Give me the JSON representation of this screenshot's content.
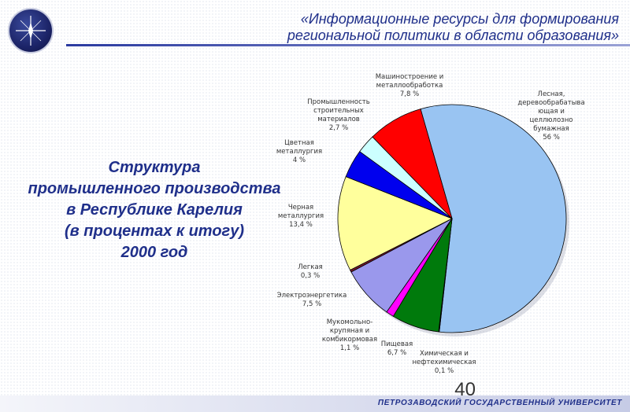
{
  "header": {
    "title_line1": "«Информационные ресурсы для формирования",
    "title_line2": "региональной политики в области образования»"
  },
  "subtitle": {
    "line1": "Структура",
    "line2": "промышленного производства",
    "line3": "в Республике Карелия",
    "line4": "(в процентах к итогу)",
    "line5": "2000 год"
  },
  "page_number": "40",
  "footer": {
    "university": "ПЕТРОЗАВОДСКИЙ ГОСУДАРСТВЕННЫЙ УНИВЕРСИТЕТ"
  },
  "chart_data": {
    "type": "pie",
    "unit": "%",
    "slices": [
      {
        "label": [
          "Лесная,",
          "деревообрабатыва",
          "ющая и",
          "целлюлозно",
          "бумажная"
        ],
        "value_text": "56 %",
        "value": 56,
        "color": "#99c4f2"
      },
      {
        "label": [
          "Химическая и",
          "нефтехимическая"
        ],
        "value_text": "0,1 %",
        "value": 0.1,
        "color": "#8a8a8a"
      },
      {
        "label": [
          "Пищевая"
        ],
        "value_text": "6,7 %",
        "value": 6.7,
        "color": "#007a0c"
      },
      {
        "label": [
          "Мукомольно-",
          "крупяная и",
          "комбикормовая"
        ],
        "value_text": "1,1 %",
        "value": 1.1,
        "color": "#ff00ff"
      },
      {
        "label": [
          "Электроэнергетика"
        ],
        "value_text": "7,5 %",
        "value": 7.5,
        "color": "#9a98ec"
      },
      {
        "label": [
          "Легкая"
        ],
        "value_text": "0,3 %",
        "value": 0.3,
        "color": "#7a1a2e"
      },
      {
        "label": [
          "Черная",
          "металлургия"
        ],
        "value_text": "13,4 %",
        "value": 13.4,
        "color": "#ffff9c"
      },
      {
        "label": [
          "Цветная",
          "металлургия"
        ],
        "value_text": "4 %",
        "value": 4,
        "color": "#0000ee"
      },
      {
        "label": [
          "Промышленность",
          "строительных",
          "материалов"
        ],
        "value_text": "2,7 %",
        "value": 2.7,
        "color": "#ccffff"
      },
      {
        "label": [
          "Машиностроение и",
          "металлообработка"
        ],
        "value_text": "7,8 %",
        "value": 7.8,
        "color": "#ff0000"
      }
    ]
  }
}
